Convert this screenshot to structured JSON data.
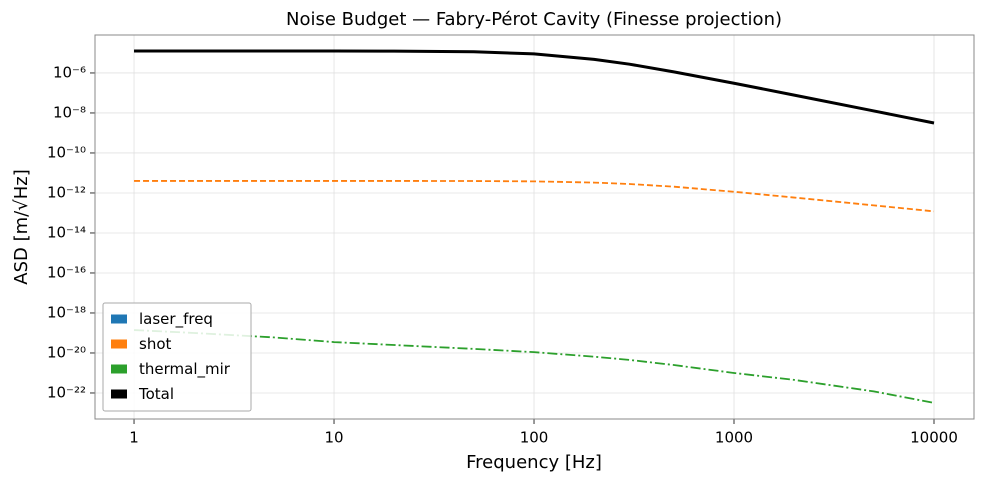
{
  "chart_data": {
    "type": "line",
    "title": "Noise Budget — Fabry-Pérot Cavity (Finesse projection)",
    "xlabel": "Frequency [Hz]",
    "ylabel": "ASD [m/√Hz]",
    "xscale": "log",
    "yscale": "log",
    "grid": true,
    "legend": "lower left",
    "x": [
      1,
      2,
      5,
      10,
      20,
      50,
      100,
      200,
      300,
      500,
      1000,
      2000,
      5000,
      10000
    ],
    "series": [
      {
        "name": "laser_freq",
        "color": "#1f77b4",
        "style": "solid",
        "values": [
          1.26e-05,
          1.26e-05,
          1.26e-05,
          1.25e-05,
          1.24e-05,
          1.15e-05,
          9e-06,
          4.8e-06,
          2.75e-06,
          1.13e-06,
          3.06e-07,
          7.8e-08,
          1.26e-08,
          3.15e-09
        ]
      },
      {
        "name": "shot",
        "color": "#ff7f0e",
        "style": "dashed",
        "values": [
          4e-12,
          4e-12,
          4e-12,
          4e-12,
          4e-12,
          3.95e-12,
          3.8e-12,
          3.3e-12,
          2.8e-12,
          2.06e-12,
          1.15e-12,
          5.9e-13,
          2.4e-13,
          1.2e-13
        ]
      },
      {
        "name": "thermal_mir",
        "color": "#2ca02c",
        "style": "dashdot",
        "values": [
          1.4e-19,
          1e-19,
          6e-20,
          3.5e-20,
          2.5e-20,
          1.6e-20,
          1.1e-20,
          6.5e-21,
          4.5e-21,
          2.5e-21,
          1e-21,
          4.5e-22,
          1.2e-22,
          3.2e-23
        ]
      },
      {
        "name": "Total",
        "color": "#000000",
        "style": "solid",
        "values": [
          1.26e-05,
          1.26e-05,
          1.26e-05,
          1.25e-05,
          1.24e-05,
          1.15e-05,
          9e-06,
          4.8e-06,
          2.75e-06,
          1.13e-06,
          3.06e-07,
          7.8e-08,
          1.26e-08,
          3.15e-09
        ]
      }
    ],
    "xlim": [
      0.638,
      15849
    ],
    "ylim": [
      5e-24,
      7.9e-05
    ],
    "xticks": [
      1,
      10,
      100,
      1000,
      10000
    ],
    "yticks": [
      {
        "value": 1e-06,
        "label": "10⁻⁶"
      },
      {
        "value": 1e-08,
        "label": "10⁻⁸"
      },
      {
        "value": 1e-10,
        "label": "10⁻¹⁰"
      },
      {
        "value": 1e-12,
        "label": "10⁻¹²"
      },
      {
        "value": 1e-14,
        "label": "10⁻¹⁴"
      },
      {
        "value": 1e-16,
        "label": "10⁻¹⁶"
      },
      {
        "value": 1e-18,
        "label": "10⁻¹⁸"
      },
      {
        "value": 1e-20,
        "label": "10⁻²⁰"
      },
      {
        "value": 1e-22,
        "label": "10⁻²²"
      }
    ]
  }
}
